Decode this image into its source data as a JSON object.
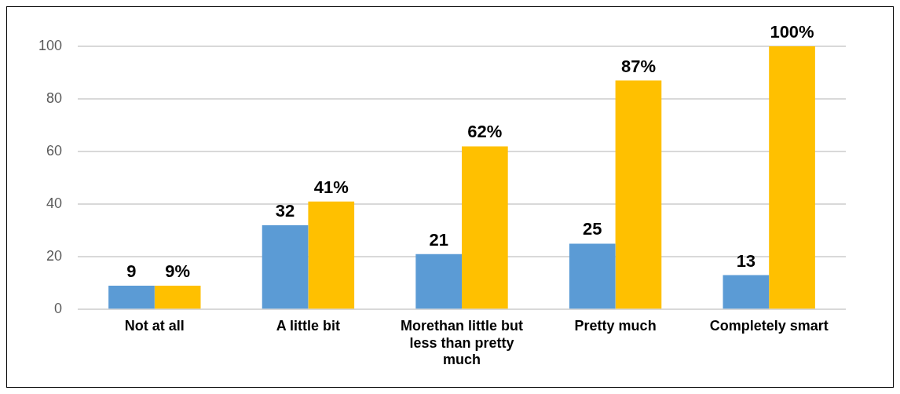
{
  "chart_data": {
    "type": "bar",
    "categories": [
      "Not at all",
      "A little bit",
      "Morethan little but less than pretty much",
      "Pretty much",
      "Completely smart"
    ],
    "series": [
      {
        "color": "#5b9bd5",
        "values": [
          9,
          32,
          21,
          25,
          13
        ],
        "value_labels": [
          "9",
          "32",
          "21",
          "25",
          "13"
        ]
      },
      {
        "color": "#ffc000",
        "values": [
          9,
          41,
          62,
          87,
          100
        ],
        "value_labels": [
          "9%",
          "41%",
          "62%",
          "87%",
          "100%"
        ]
      }
    ],
    "ylim": [
      0,
      100
    ],
    "yticks": [
      0,
      20,
      40,
      60,
      80,
      100
    ],
    "grid": "y",
    "legend": false
  }
}
